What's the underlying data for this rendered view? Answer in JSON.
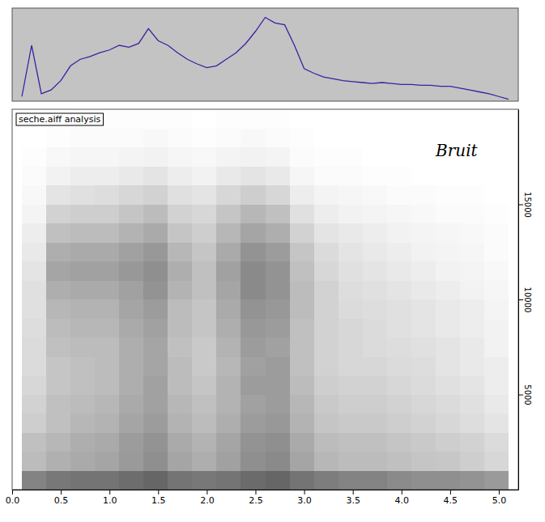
{
  "chart_data": [
    {
      "type": "line",
      "x": [
        0.1,
        0.2,
        0.3,
        0.4,
        0.5,
        0.6,
        0.7,
        0.8,
        0.9,
        1.0,
        1.1,
        1.2,
        1.3,
        1.4,
        1.5,
        1.6,
        1.7,
        1.8,
        1.9,
        2.0,
        2.1,
        2.2,
        2.3,
        2.4,
        2.5,
        2.6,
        2.7,
        2.8,
        2.9,
        3.0,
        3.1,
        3.2,
        3.3,
        3.4,
        3.5,
        3.6,
        3.7,
        3.8,
        3.9,
        4.0,
        4.1,
        4.2,
        4.3,
        4.4,
        4.5,
        4.6,
        4.7,
        4.8,
        4.9,
        5.0,
        5.1
      ],
      "values": [
        5,
        60,
        8,
        12,
        22,
        38,
        45,
        48,
        52,
        55,
        60,
        58,
        62,
        78,
        65,
        60,
        52,
        45,
        40,
        36,
        38,
        45,
        52,
        62,
        75,
        90,
        84,
        82,
        60,
        35,
        30,
        26,
        24,
        22,
        21,
        20,
        19,
        20,
        19,
        18,
        18,
        17,
        17,
        16,
        16,
        14,
        12,
        10,
        8,
        5,
        2
      ],
      "color": "#3f1fa0",
      "xlim": [
        0,
        5.2
      ],
      "ylim": [
        0,
        100
      ],
      "tick_labels": false
    },
    {
      "type": "heatmap",
      "title": "seche.aiff analysis",
      "annotations": [
        "Bruit"
      ],
      "xbins": [
        0.1,
        0.35,
        0.6,
        0.85,
        1.1,
        1.35,
        1.6,
        1.85,
        2.1,
        2.35,
        2.6,
        2.85,
        3.1,
        3.35,
        3.6,
        3.85,
        4.1,
        4.35,
        4.6,
        4.85,
        5.1
      ],
      "ybins": [
        0,
        1000,
        2000,
        3000,
        4000,
        5000,
        6000,
        7000,
        8000,
        9000,
        10000,
        11000,
        12000,
        13000,
        14000,
        15000,
        16000,
        17000,
        18000,
        19000,
        20000
      ],
      "cells": [
        [
          55,
          60,
          62,
          62,
          65,
          68,
          62,
          60,
          62,
          66,
          68,
          62,
          58,
          55,
          55,
          52,
          50,
          50,
          48,
          45
        ],
        [
          30,
          35,
          38,
          40,
          45,
          50,
          40,
          36,
          42,
          50,
          52,
          40,
          32,
          30,
          30,
          28,
          26,
          25,
          22,
          18
        ],
        [
          28,
          32,
          36,
          38,
          44,
          48,
          38,
          34,
          40,
          48,
          50,
          38,
          30,
          28,
          28,
          26,
          24,
          22,
          20,
          16
        ],
        [
          22,
          28,
          32,
          34,
          40,
          44,
          34,
          30,
          36,
          44,
          46,
          34,
          26,
          24,
          24,
          22,
          20,
          18,
          15,
          12
        ],
        [
          20,
          28,
          30,
          32,
          38,
          42,
          32,
          28,
          34,
          42,
          44,
          32,
          24,
          22,
          22,
          20,
          18,
          16,
          14,
          10
        ],
        [
          18,
          26,
          28,
          30,
          36,
          42,
          30,
          26,
          34,
          44,
          44,
          30,
          22,
          20,
          20,
          18,
          16,
          14,
          12,
          8
        ],
        [
          16,
          26,
          28,
          30,
          36,
          40,
          30,
          24,
          32,
          42,
          44,
          28,
          20,
          18,
          18,
          16,
          15,
          12,
          10,
          8
        ],
        [
          16,
          28,
          30,
          30,
          36,
          40,
          28,
          24,
          34,
          44,
          42,
          28,
          20,
          18,
          16,
          15,
          14,
          12,
          10,
          6
        ],
        [
          15,
          30,
          32,
          32,
          38,
          42,
          30,
          26,
          36,
          46,
          44,
          28,
          20,
          18,
          16,
          14,
          12,
          10,
          8,
          6
        ],
        [
          14,
          32,
          34,
          34,
          40,
          44,
          30,
          26,
          38,
          48,
          46,
          30,
          20,
          16,
          15,
          14,
          12,
          10,
          8,
          5
        ],
        [
          14,
          36,
          38,
          38,
          42,
          48,
          34,
          28,
          40,
          52,
          48,
          30,
          20,
          15,
          14,
          12,
          10,
          8,
          6,
          4
        ],
        [
          12,
          40,
          42,
          42,
          46,
          50,
          36,
          28,
          42,
          52,
          48,
          28,
          18,
          14,
          12,
          10,
          8,
          6,
          5,
          3
        ],
        [
          10,
          36,
          38,
          38,
          42,
          46,
          32,
          26,
          38,
          48,
          44,
          26,
          16,
          12,
          10,
          8,
          6,
          5,
          4,
          2
        ],
        [
          8,
          28,
          30,
          30,
          34,
          38,
          26,
          22,
          32,
          40,
          36,
          20,
          12,
          10,
          8,
          6,
          5,
          4,
          3,
          2
        ],
        [
          5,
          20,
          22,
          22,
          26,
          30,
          20,
          18,
          26,
          32,
          28,
          14,
          8,
          6,
          5,
          4,
          3,
          2,
          2,
          1
        ],
        [
          3,
          12,
          14,
          15,
          18,
          20,
          14,
          12,
          18,
          22,
          18,
          8,
          5,
          4,
          3,
          2,
          2,
          1,
          1,
          0
        ],
        [
          2,
          6,
          8,
          8,
          10,
          12,
          8,
          6,
          10,
          12,
          10,
          4,
          2,
          2,
          1,
          1,
          0,
          0,
          0,
          0
        ],
        [
          1,
          3,
          4,
          4,
          5,
          6,
          4,
          3,
          5,
          6,
          5,
          2,
          1,
          1,
          0,
          0,
          0,
          0,
          0,
          0
        ],
        [
          0,
          1,
          2,
          2,
          2,
          3,
          2,
          1,
          2,
          3,
          2,
          1,
          0,
          0,
          0,
          0,
          0,
          0,
          0,
          0
        ],
        [
          0,
          0,
          1,
          1,
          1,
          1,
          1,
          0,
          1,
          1,
          1,
          0,
          0,
          0,
          0,
          0,
          0,
          0,
          0,
          0
        ]
      ],
      "zlim": [
        0,
        100
      ],
      "xlim": [
        0,
        5.2
      ],
      "ylim": [
        0,
        20000
      ],
      "xticks": [
        {
          "value": 0,
          "label": "0.0"
        },
        0.5,
        {
          "value": 1,
          "label": "1.0"
        },
        1.5,
        {
          "value": 2,
          "label": "2.0"
        },
        2.5,
        {
          "value": 3,
          "label": "3.0"
        },
        3.5,
        {
          "value": 4,
          "label": "4.0"
        },
        4.5,
        {
          "value": 5,
          "label": "5.0"
        }
      ],
      "yticks": [
        5000,
        10000,
        15000
      ]
    }
  ]
}
